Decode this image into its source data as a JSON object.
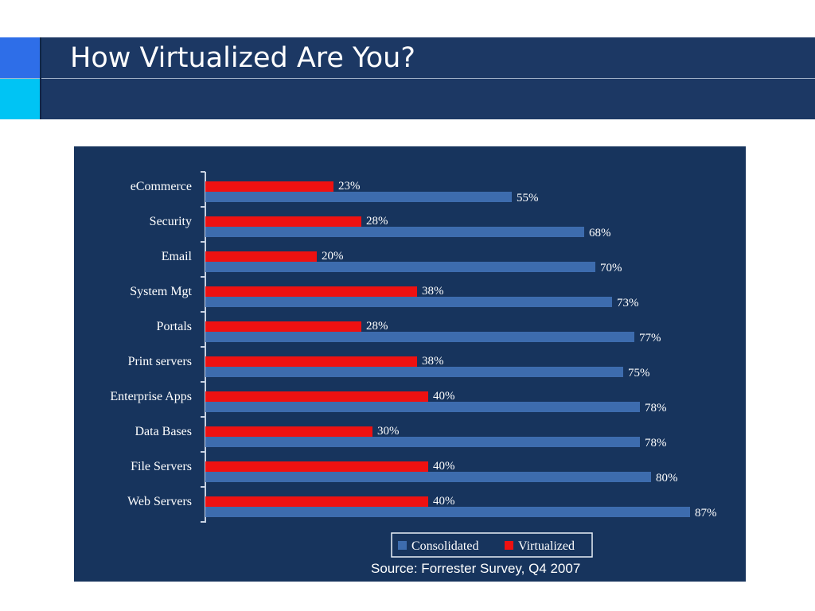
{
  "slide": {
    "title": "How Virtualized Are You?"
  },
  "colors": {
    "title_bar": "#1c3864",
    "accent_top": "#2e6ee8",
    "accent_bottom": "#00c4f4",
    "chart_background": "#17345d",
    "consolidated": "#3d6cae",
    "virtualized": "#ee1111"
  },
  "chart_data": {
    "type": "bar",
    "orientation": "horizontal",
    "categories": [
      "eCommerce",
      "Security",
      "Email",
      "System Mgt",
      "Portals",
      "Print servers",
      "Enterprise Apps",
      "Data Bases",
      "File Servers",
      "Web Servers"
    ],
    "series": [
      {
        "name": "Virtualized",
        "values": [
          23,
          28,
          20,
          38,
          28,
          38,
          40,
          30,
          40,
          40
        ]
      },
      {
        "name": "Consolidated",
        "values": [
          55,
          68,
          70,
          73,
          77,
          75,
          78,
          78,
          80,
          87
        ]
      }
    ],
    "value_suffix": "%",
    "xlim": [
      0,
      100
    ],
    "grid": false,
    "legend": {
      "position": "bottom",
      "entries": [
        "Consolidated",
        "Virtualized"
      ]
    },
    "source": "Source: Forrester Survey, Q4 2007"
  }
}
